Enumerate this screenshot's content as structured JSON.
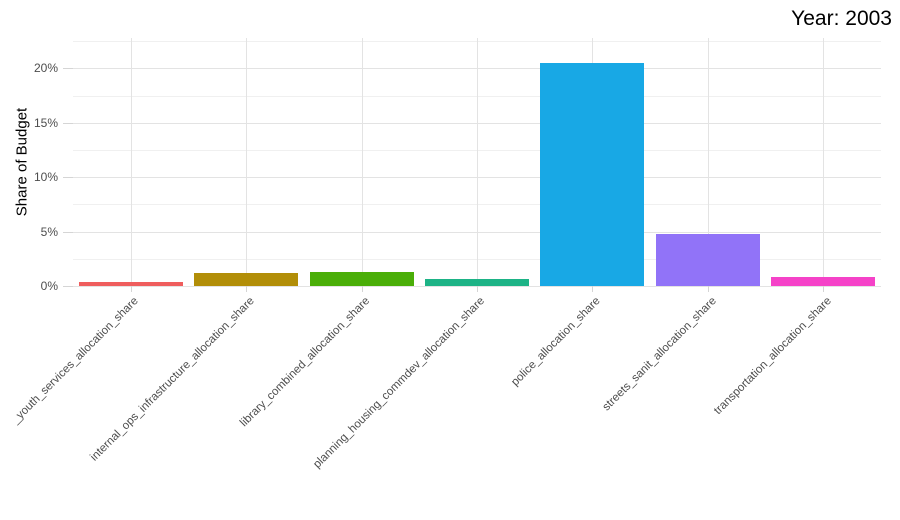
{
  "title": "Year: 2003",
  "y_axis_title": "Share of Budget",
  "chart_data": {
    "type": "bar",
    "title": "Year: 2003",
    "xlabel": "",
    "ylabel": "Share of Budget",
    "unit": "percent of budget",
    "categories": [
      "_youth_services_allocation_share",
      "internal_ops_infrastructure_allocation_share",
      "library_combined_allocation_share",
      "planning_housing_commdev_allocation_share",
      "police_allocation_share",
      "streets_sanit_allocation_share",
      "transportation_allocation_share"
    ],
    "values": [
      0.4,
      1.2,
      1.3,
      0.6,
      20.5,
      4.75,
      0.85
    ],
    "bar_colors": [
      "#EF5D5D",
      "#B28E08",
      "#4AAE08",
      "#1DB386",
      "#18A8E5",
      "#9173F8",
      "#F542C8"
    ],
    "ylim": [
      0,
      22.8
    ],
    "yticks": [
      0,
      5,
      10,
      15,
      20
    ],
    "ytick_labels": [
      "0%",
      "5%",
      "10%",
      "15%",
      "20%"
    ],
    "minor_yticks": [
      2.5,
      7.5,
      12.5,
      17.5,
      22.5
    ],
    "grid": "horizontal major+minor, vertical major at category centers",
    "legend_position": "none"
  },
  "style": {
    "background": "#FFFFFF",
    "grid_major_color": "#E3E3E3",
    "grid_minor_color": "#F0F0F0",
    "tick_color": "#D5D5D5",
    "axis_text_color": "#4D4D4D",
    "title_color": "#000000"
  }
}
